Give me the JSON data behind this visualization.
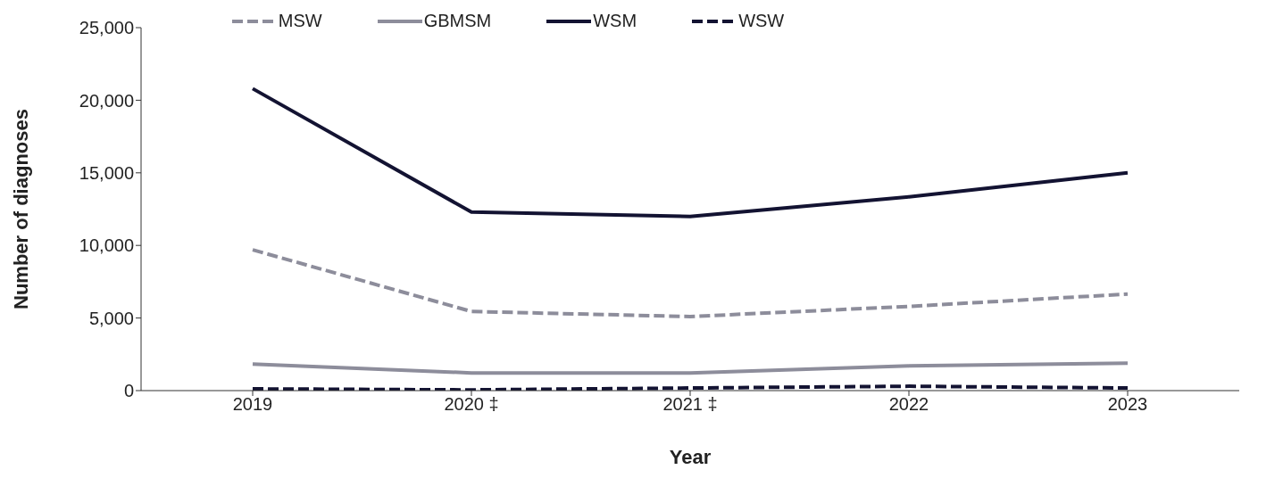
{
  "chart_data": {
    "type": "line",
    "xlabel": "Year",
    "ylabel": "Number of diagnoses",
    "categories": [
      "2019",
      "2020 ‡",
      "2021 ‡",
      "2022",
      "2023"
    ],
    "series": [
      {
        "name": "MSW",
        "color": "#8d8d9b",
        "line_style": "dashed",
        "values": [
          9700,
          5450,
          5100,
          5800,
          6650
        ]
      },
      {
        "name": "GBMSM",
        "color": "#8d8d9b",
        "line_style": "solid",
        "values": [
          1820,
          1220,
          1220,
          1700,
          1890
        ]
      },
      {
        "name": "WSM",
        "color": "#131332",
        "line_style": "solid",
        "values": [
          20800,
          12300,
          12000,
          13350,
          15000
        ]
      },
      {
        "name": "WSW",
        "color": "#131332",
        "line_style": "dashed",
        "values": [
          120,
          50,
          180,
          300,
          180
        ]
      }
    ],
    "ylim": [
      0,
      25000
    ],
    "yticks": [
      0,
      {
        "value": 5000,
        "label": "5,000"
      },
      {
        "value": 10000,
        "label": "10,000"
      },
      {
        "value": 15000,
        "label": "15,000"
      },
      {
        "value": 20000,
        "label": "20,000"
      },
      {
        "value": 25000,
        "label": "25,000"
      }
    ],
    "grid": false,
    "legend": "top",
    "marker": "none"
  }
}
